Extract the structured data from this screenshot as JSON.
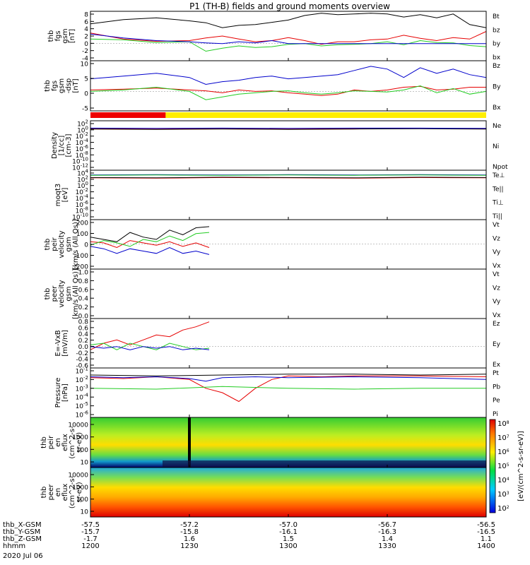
{
  "title": "P1 (TH-B) fields and ground moments overview",
  "time": {
    "ticks": [
      "1200",
      "1230",
      "1300",
      "1330",
      "1400"
    ],
    "date": "2020 Jul 06",
    "rows": [
      {
        "label": "thb_X-GSM",
        "values": [
          "-57.5",
          "-57.2",
          "-57.0",
          "-56.7",
          "-56.5"
        ]
      },
      {
        "label": "thb_Y-GSM",
        "values": [
          "-15.7",
          "-15.8",
          "-16.1",
          "-16.3",
          "-16.5"
        ]
      },
      {
        "label": "thb_Z-GSM",
        "values": [
          "-1.7",
          "1.6",
          "1.5",
          "1.4",
          "1.1"
        ]
      },
      {
        "label": "hhmm",
        "values": [
          "1200",
          "1230",
          "1300",
          "1330",
          "1400"
        ]
      }
    ]
  },
  "colors": {
    "black": "#000000",
    "red": "#e60000",
    "green": "#22cc22",
    "blue": "#0000cc",
    "bar_red": "#ee0000",
    "bar_yellow": "#ffee00"
  },
  "mode_bar": {
    "red_until_fraction": 0.19
  },
  "colorbar": {
    "ticks": [
      "10^8",
      "10^7",
      "10^6",
      "10^5",
      "10^4",
      "10^3",
      "10^2"
    ],
    "label": "[eV/(cm^2-s-sr-eV)]"
  },
  "chart_data": [
    {
      "type": "line",
      "id": "fgs",
      "ylabel": [
        "thb",
        "fgs",
        "gsm",
        "[nT]"
      ],
      "yticks": [
        "8",
        "6",
        "4",
        "2",
        "0",
        "-2",
        "-4"
      ],
      "ylim": [
        -4.5,
        8.5
      ],
      "series": [
        {
          "name": "Bt",
          "color": "#000000",
          "x": [
            0,
            10,
            20,
            30,
            35,
            40,
            45,
            50,
            55,
            60,
            65,
            70,
            75,
            80,
            85,
            90,
            95,
            100,
            105,
            110,
            115,
            120
          ],
          "y": [
            5.2,
            6.3,
            6.8,
            6.0,
            5.5,
            4.2,
            4.8,
            5.0,
            5.6,
            6.2,
            7.4,
            8.0,
            7.6,
            7.8,
            8.0,
            7.8,
            7.0,
            7.6,
            6.8,
            7.8,
            5.0,
            4.2
          ]
        },
        {
          "name": "bz",
          "color": "#e60000",
          "x": [
            0,
            10,
            20,
            30,
            35,
            40,
            45,
            50,
            55,
            60,
            65,
            70,
            75,
            80,
            85,
            90,
            95,
            100,
            105,
            110,
            115,
            120
          ],
          "y": [
            2.8,
            1.2,
            0.6,
            0.8,
            1.5,
            2.0,
            1.2,
            0.5,
            0.8,
            1.6,
            0.8,
            -0.2,
            0.5,
            0.5,
            1.0,
            1.2,
            2.2,
            1.4,
            0.8,
            1.6,
            1.2,
            3.2
          ]
        },
        {
          "name": "by",
          "color": "#22cc22",
          "x": [
            0,
            10,
            20,
            30,
            35,
            40,
            45,
            50,
            55,
            60,
            65,
            70,
            75,
            80,
            85,
            90,
            95,
            100,
            105,
            110,
            115,
            120
          ],
          "y": [
            1.2,
            1.0,
            0.3,
            0.5,
            -2.0,
            -1.2,
            -0.6,
            -1.0,
            -0.8,
            -0.2,
            0.0,
            -0.6,
            -0.3,
            -0.2,
            0.0,
            0.5,
            -0.3,
            0.8,
            0.3,
            0.2,
            -0.5,
            -0.8
          ]
        },
        {
          "name": "bx",
          "color": "#0000cc",
          "x": [
            0,
            10,
            20,
            30,
            35,
            40,
            45,
            50,
            55,
            60,
            65,
            70,
            75,
            80,
            85,
            90,
            95,
            100,
            105,
            110,
            115,
            120
          ],
          "y": [
            2.5,
            1.5,
            0.8,
            0.5,
            0.2,
            0.0,
            0.5,
            0.2,
            0.8,
            0.0,
            0.0,
            0.0,
            0.0,
            0.0,
            0.0,
            0.0,
            0.0,
            0.0,
            0.0,
            0.0,
            0.0,
            0.0
          ]
        }
      ]
    },
    {
      "type": "line",
      "id": "fgs_gse",
      "ylabel": [
        "thb",
        "fgs",
        "gsm",
        "-dsp",
        "[nT]"
      ],
      "yticks": [
        "10",
        "5",
        "0",
        "-5"
      ],
      "ylim": [
        -7,
        11
      ],
      "series": [
        {
          "name": "Bz",
          "color": "#e60000",
          "x": [
            0,
            10,
            20,
            30,
            35,
            40,
            45,
            50,
            55,
            60,
            65,
            70,
            75,
            80,
            85,
            90,
            95,
            100,
            105,
            110,
            115,
            120
          ],
          "y": [
            0.5,
            0.8,
            1.2,
            0.5,
            0.2,
            -0.5,
            0.5,
            0.0,
            0.2,
            -0.5,
            -1.0,
            -1.5,
            -1.0,
            0.5,
            0.0,
            0.5,
            1.5,
            1.8,
            0.5,
            0.8,
            1.5,
            1.5
          ]
        },
        {
          "name": "By",
          "color": "#22cc22",
          "x": [
            0,
            10,
            20,
            30,
            35,
            40,
            45,
            50,
            55,
            60,
            65,
            70,
            75,
            80,
            85,
            90,
            95,
            100,
            105,
            110,
            115,
            120
          ],
          "y": [
            0.0,
            0.5,
            1.5,
            0.0,
            -3.0,
            -2.0,
            -1.0,
            -0.5,
            0.0,
            0.2,
            -0.5,
            -1.0,
            -0.5,
            0.2,
            0.0,
            -0.2,
            0.5,
            2.0,
            -0.5,
            1.0,
            -1.0,
            0.0
          ]
        },
        {
          "name": "Bx",
          "color": "#0000cc",
          "x": [
            0,
            10,
            20,
            30,
            35,
            40,
            45,
            50,
            55,
            60,
            65,
            70,
            75,
            80,
            85,
            90,
            95,
            100,
            105,
            110,
            115,
            120
          ],
          "y": [
            4.5,
            5.5,
            6.5,
            5.0,
            2.5,
            3.5,
            4.0,
            5.0,
            5.5,
            4.5,
            5.0,
            5.5,
            6.0,
            7.5,
            9.0,
            8.0,
            5.0,
            8.5,
            6.5,
            8.0,
            6.0,
            5.0
          ]
        }
      ]
    },
    {
      "type": "line",
      "id": "density",
      "log": true,
      "ylabel": [
        "Density",
        "[1/cc]",
        "[cm-3]"
      ],
      "yticks": [
        "10^2",
        "10^0",
        "10^-2",
        "10^-4",
        "10^-6",
        "10^-8",
        "10^-10",
        "10^-12"
      ],
      "ylim": [
        -13,
        2.5
      ],
      "series": [
        {
          "name": "Ne",
          "color": "#e60000",
          "x": [
            0,
            20,
            40,
            60,
            80,
            100,
            120
          ],
          "y": [
            0.0,
            -0.1,
            0.1,
            -0.1,
            0.0,
            0.1,
            0.0
          ]
        },
        {
          "name": "Ni",
          "color": "#000000",
          "x": [
            0,
            20,
            40,
            60,
            80,
            100,
            120
          ],
          "y": [
            -0.1,
            -0.2,
            -0.1,
            -0.2,
            -0.1,
            0.0,
            -0.1
          ]
        },
        {
          "name": "Npot",
          "color": "#0000cc",
          "x": [
            0,
            20,
            40,
            60,
            80,
            100,
            120
          ],
          "y": [
            0.2,
            0.1,
            0.2,
            0.1,
            0.2,
            0.2,
            0.1
          ]
        }
      ]
    },
    {
      "type": "line",
      "id": "temp",
      "log": true,
      "ylabel": [
        "moqt3",
        "[eV]"
      ],
      "yticks": [
        "10^4",
        "10^2",
        "10^0",
        "10^-2",
        "10^-4",
        "10^-6",
        "10^-8",
        "10^-10"
      ],
      "ylim": [
        -11,
        4.5
      ],
      "series": [
        {
          "name": "Te⊥",
          "color": "#e60000",
          "x": [
            0,
            20,
            40,
            60,
            80,
            100,
            120
          ],
          "y": [
            2.1,
            2.0,
            2.2,
            2.1,
            2.0,
            2.2,
            2.1
          ]
        },
        {
          "name": "Te||",
          "color": "#000000",
          "x": [
            0,
            20,
            40,
            60,
            80,
            100,
            120
          ],
          "y": [
            2.2,
            2.1,
            2.3,
            2.2,
            2.1,
            2.3,
            2.2
          ]
        },
        {
          "name": "Ti⊥",
          "color": "#0000cc",
          "x": [
            0,
            20,
            40,
            60,
            80,
            100,
            120
          ],
          "y": [
            3.0,
            3.1,
            3.0,
            3.1,
            3.0,
            3.1,
            3.0
          ]
        },
        {
          "name": "Ti||",
          "color": "#22cc22",
          "x": [
            0,
            20,
            40,
            60,
            80,
            100,
            120
          ],
          "y": [
            2.9,
            3.0,
            2.9,
            3.0,
            2.9,
            3.0,
            2.9
          ]
        }
      ]
    },
    {
      "type": "line",
      "id": "velocity",
      "ylabel": [
        "thb",
        "peir",
        "velocity",
        "gsm",
        "[km/s (All Qs)]"
      ],
      "yticks": [
        "200",
        "100",
        "0",
        "-100",
        "-200"
      ],
      "ylim": [
        -215,
        210
      ],
      "series": [
        {
          "name": "Vt",
          "color": "#000000",
          "x": [
            0,
            4,
            8,
            12,
            16,
            20,
            24,
            28,
            32,
            36
          ],
          "y": [
            60,
            40,
            20,
            100,
            60,
            40,
            120,
            80,
            140,
            150
          ]
        },
        {
          "name": "Vz",
          "color": "#e60000",
          "x": [
            0,
            4,
            8,
            12,
            16,
            20,
            24,
            28,
            32,
            36
          ],
          "y": [
            20,
            10,
            -30,
            30,
            10,
            -10,
            20,
            -20,
            10,
            -30
          ]
        },
        {
          "name": "Vy",
          "color": "#22cc22",
          "x": [
            0,
            4,
            8,
            12,
            16,
            20,
            24,
            28,
            32,
            36
          ],
          "y": [
            -10,
            30,
            10,
            -20,
            40,
            20,
            70,
            30,
            90,
            100
          ]
        },
        {
          "name": "Vx",
          "color": "#0000cc",
          "x": [
            0,
            4,
            8,
            12,
            16,
            20,
            24,
            28,
            32,
            36
          ],
          "y": [
            -20,
            -40,
            -80,
            -40,
            -60,
            -80,
            -30,
            -80,
            -60,
            -90
          ]
        }
      ]
    },
    {
      "type": "line",
      "id": "velocity2",
      "ylabel": [
        "thb",
        "peer",
        "velocity",
        "gsm",
        "[km/s (All Qs)]"
      ],
      "yticks": [
        "1.0",
        "0.8",
        "0.6",
        "0.4",
        "0.2",
        "0.0"
      ],
      "ylim": [
        0,
        1.0
      ],
      "series": [
        {
          "name": "Vt",
          "color": "#000000",
          "x": [],
          "y": []
        },
        {
          "name": "Vz",
          "color": "#e60000",
          "x": [],
          "y": []
        },
        {
          "name": "Vy",
          "color": "#22cc22",
          "x": [],
          "y": []
        },
        {
          "name": "Vx",
          "color": "#0000cc",
          "x": [],
          "y": []
        }
      ]
    },
    {
      "type": "line",
      "id": "efield",
      "ylabel": [
        "E=-VxB",
        "[mV/m]"
      ],
      "yticks": [
        "0.8",
        "0.6",
        "0.4",
        "0.2",
        "0.0",
        "-0.2",
        "-0.4",
        "-0.6"
      ],
      "ylim": [
        -0.65,
        0.85
      ],
      "series": [
        {
          "name": "Ez",
          "color": "#e60000",
          "x": [
            0,
            4,
            8,
            12,
            16,
            20,
            24,
            28,
            32,
            36
          ],
          "y": [
            -0.1,
            0.1,
            0.2,
            0.05,
            0.2,
            0.35,
            0.3,
            0.5,
            0.6,
            0.75
          ]
        },
        {
          "name": "Ey",
          "color": "#22cc22",
          "x": [
            0,
            4,
            8,
            12,
            16,
            20,
            24,
            28,
            32,
            36
          ],
          "y": [
            0.05,
            0.1,
            -0.1,
            0.1,
            0.0,
            -0.1,
            0.1,
            0.0,
            -0.1,
            -0.05
          ]
        },
        {
          "name": "Ex",
          "color": "#0000cc",
          "x": [
            0,
            4,
            8,
            12,
            16,
            20,
            24,
            28,
            32,
            36
          ],
          "y": [
            0.0,
            -0.05,
            0.0,
            -0.1,
            0.0,
            -0.05,
            0.0,
            -0.1,
            -0.05,
            -0.1
          ]
        }
      ]
    },
    {
      "type": "line",
      "id": "pressure",
      "log": true,
      "ylabel": [
        "Pressure",
        "[nPa]"
      ],
      "yticks": [
        "10^-1",
        "10^-2",
        "10^-3",
        "10^-4",
        "10^-5",
        "10^-6"
      ],
      "ylim": [
        -6.3,
        -0.7
      ],
      "series": [
        {
          "name": "Pt",
          "color": "#000000",
          "x": [
            0,
            20,
            40,
            60,
            80,
            100,
            120
          ],
          "y": [
            -1.5,
            -1.6,
            -1.5,
            -1.4,
            -1.4,
            -1.5,
            -1.4
          ]
        },
        {
          "name": "Pb",
          "color": "#e60000",
          "x": [
            0,
            10,
            20,
            30,
            35,
            40,
            45,
            50,
            55,
            60,
            70,
            80,
            100,
            120
          ],
          "y": [
            -1.8,
            -1.9,
            -1.7,
            -2.0,
            -3.0,
            -3.5,
            -4.5,
            -3.0,
            -2.0,
            -1.6,
            -1.7,
            -1.6,
            -1.6,
            -1.7
          ]
        },
        {
          "name": "Pe",
          "color": "#22cc22",
          "x": [
            0,
            20,
            40,
            60,
            80,
            100,
            120
          ],
          "y": [
            -3.0,
            -3.1,
            -2.8,
            -3.0,
            -3.1,
            -3.0,
            -3.0
          ]
        },
        {
          "name": "Pi",
          "color": "#0000cc",
          "x": [
            0,
            10,
            20,
            30,
            35,
            40,
            50,
            60,
            80,
            100,
            120
          ],
          "y": [
            -1.7,
            -1.8,
            -1.7,
            -1.9,
            -2.2,
            -1.8,
            -1.7,
            -1.8,
            -1.7,
            -1.8,
            -2.0
          ]
        }
      ]
    },
    {
      "type": "heatmap",
      "id": "peir_spec",
      "ylabel": [
        "thb",
        "peir",
        "en",
        "eflux",
        "(cm^2-s-",
        "sr-eV)"
      ],
      "yticks": [
        "10000",
        "1000",
        "100",
        "10"
      ]
    },
    {
      "type": "heatmap",
      "id": "peer_spec",
      "ylabel": [
        "thb",
        "peer",
        "en",
        "eflux",
        "(cm^2-s-",
        "sr-eV)"
      ],
      "yticks": [
        "10000",
        "1000",
        "100",
        "10"
      ]
    }
  ]
}
